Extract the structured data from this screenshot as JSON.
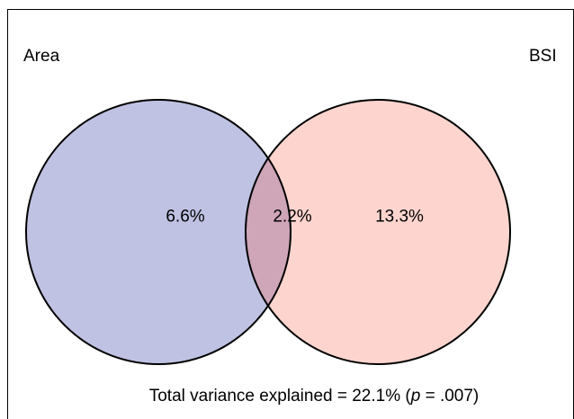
{
  "sets": {
    "left": {
      "label": "Area",
      "color": "#bfc2e3"
    },
    "right": {
      "label": "BSI",
      "color": "#fdd5ce"
    }
  },
  "overlap_color": "#cfa5b8",
  "regions": {
    "left_only": "6.6%",
    "overlap": "2.2%",
    "right_only": "13.3%"
  },
  "caption": {
    "prefix": "Total variance explained = 22.1% (",
    "p_symbol": "p",
    "suffix": " = .007)"
  }
}
